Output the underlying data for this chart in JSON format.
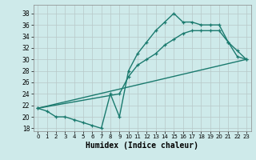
{
  "xlabel": "Humidex (Indice chaleur)",
  "bg_color": "#ceeaea",
  "line_color": "#1a7a6e",
  "grid_color": "#b8c8c8",
  "xlim": [
    -0.5,
    23.5
  ],
  "ylim": [
    17.5,
    39.5
  ],
  "xticks": [
    0,
    1,
    2,
    3,
    4,
    5,
    6,
    7,
    8,
    9,
    10,
    11,
    12,
    13,
    14,
    15,
    16,
    17,
    18,
    19,
    20,
    21,
    22,
    23
  ],
  "yticks": [
    18,
    20,
    22,
    24,
    26,
    28,
    30,
    32,
    34,
    36,
    38
  ],
  "line1_x": [
    0,
    1,
    2,
    3,
    4,
    5,
    6,
    7,
    8,
    9,
    10,
    11,
    12,
    13,
    14,
    15,
    16,
    17,
    18,
    19,
    20,
    21,
    22,
    23
  ],
  "line1_y": [
    21.5,
    21.0,
    20.0,
    20.0,
    19.5,
    19.0,
    18.5,
    18.0,
    24.0,
    20.0,
    28.0,
    31.0,
    33.0,
    35.0,
    36.5,
    38.0,
    36.5,
    36.5,
    36.0,
    36.0,
    36.0,
    33.0,
    30.5,
    30.0
  ],
  "line2_x": [
    0,
    9,
    10,
    11,
    12,
    13,
    14,
    15,
    16,
    17,
    18,
    19,
    20,
    21,
    22,
    23
  ],
  "line2_y": [
    21.5,
    24.0,
    27.0,
    29.0,
    30.0,
    31.0,
    32.5,
    33.5,
    34.5,
    35.0,
    35.0,
    35.0,
    35.0,
    33.0,
    31.5,
    30.0
  ],
  "line3_x": [
    0,
    23
  ],
  "line3_y": [
    21.5,
    30.0
  ]
}
